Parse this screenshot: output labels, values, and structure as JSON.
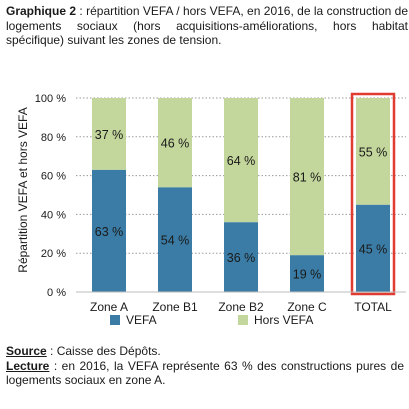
{
  "caption": {
    "label": "Graphique 2",
    "text": " : répartition VEFA / hors VEFA, en 2016, de la construction de logements sociaux (hors acquisitions-améliorations, hors habitat spécifique) suivant les zones de tension."
  },
  "chart_data": {
    "type": "bar",
    "stacked": true,
    "percent_stacked": true,
    "categories": [
      "Zone A",
      "Zone B1",
      "Zone B2",
      "Zone C",
      "TOTAL"
    ],
    "series": [
      {
        "name": "VEFA",
        "values": [
          63,
          54,
          36,
          19,
          45
        ],
        "labels": [
          "63 %",
          "54 %",
          "36 %",
          "19 %",
          "45 %"
        ],
        "color": "#3a7ca5"
      },
      {
        "name": "Hors VEFA",
        "values": [
          37,
          46,
          64,
          81,
          55
        ],
        "labels": [
          "37 %",
          "46 %",
          "64 %",
          "81 %",
          "55 %"
        ],
        "color": "#c3d69b"
      }
    ],
    "ylabel": "Répartition VEFA et hors VEFA",
    "ylim": [
      0,
      100
    ],
    "yticks": [
      "0 %",
      "20 %",
      "40 %",
      "60 %",
      "80 %",
      "100 %"
    ],
    "grid": true,
    "legend": "bottom",
    "highlight_category": "TOTAL",
    "highlight_color": "#e03c31"
  },
  "notes": {
    "source_label": "Source",
    "source_text": " : Caisse des Dépôts.",
    "reading_label": "Lecture",
    "reading_text": " : en 2016, la VEFA représente 63 % des constructions pures de logements sociaux en zone A."
  }
}
